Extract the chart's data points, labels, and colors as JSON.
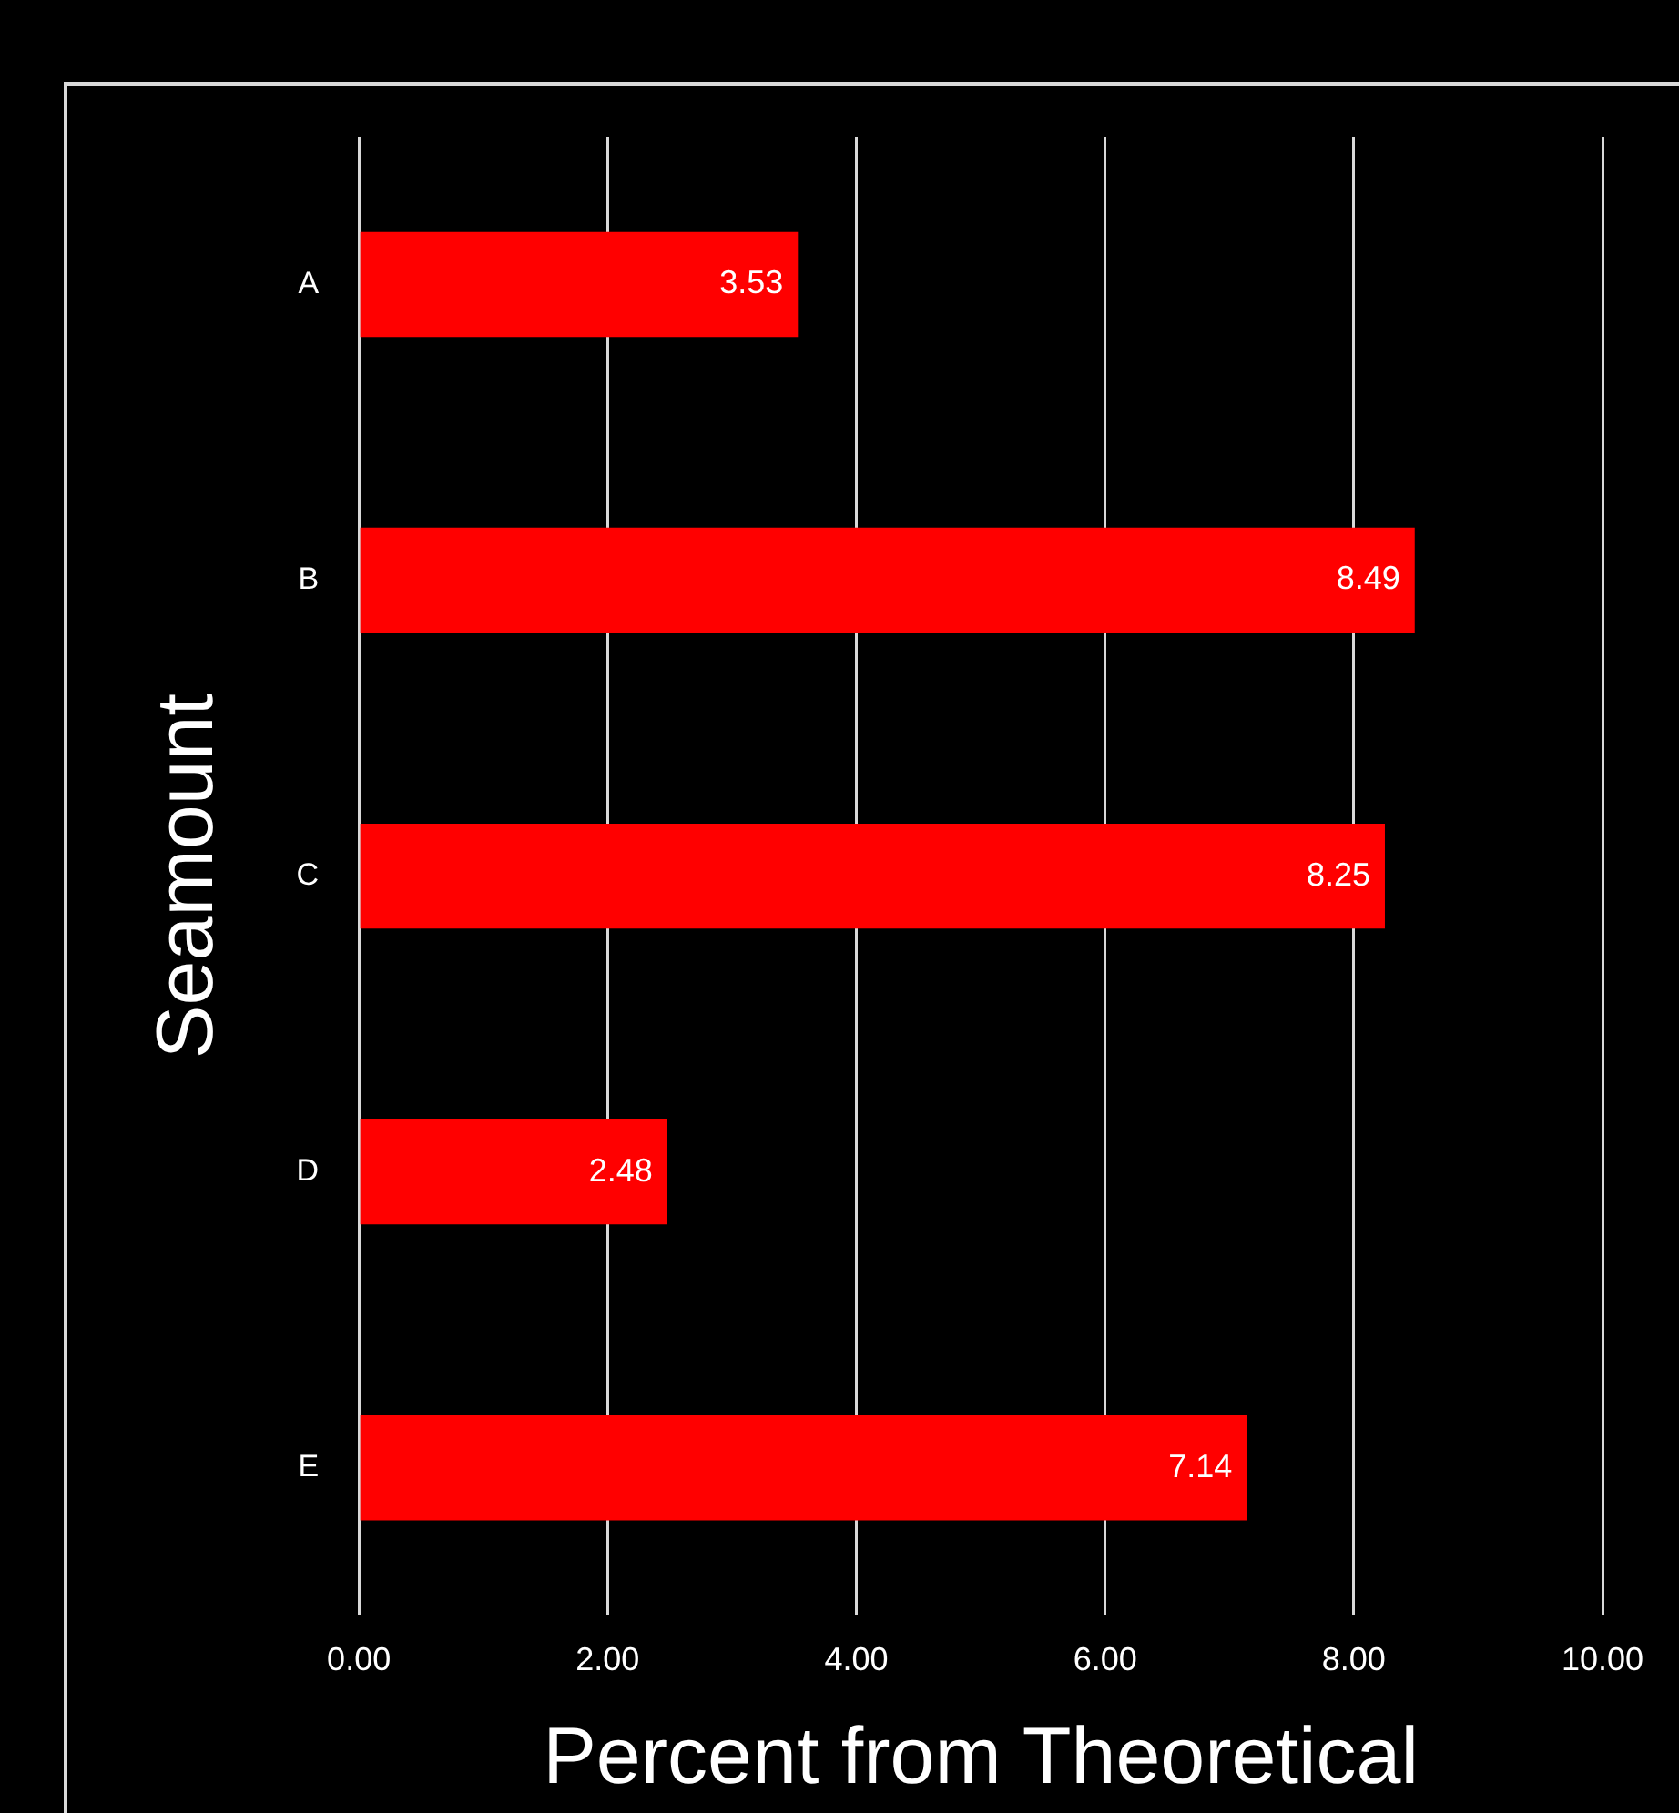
{
  "chart_data": {
    "type": "bar",
    "orientation": "horizontal",
    "xlabel": "Percent from Theoretical",
    "ylabel": "Seamount",
    "categories": [
      "A",
      "B",
      "C",
      "D",
      "E"
    ],
    "values": [
      3.53,
      8.49,
      8.25,
      2.48,
      7.14
    ],
    "color": "#ff0000",
    "xlim": [
      0,
      10
    ],
    "xticks": [
      {
        "value": 0,
        "label": "0.00"
      },
      {
        "value": 2,
        "label": "2.00"
      },
      {
        "value": 4,
        "label": "4.00"
      },
      {
        "value": 6,
        "label": "6.00"
      },
      {
        "value": 8,
        "label": "8.00"
      },
      {
        "value": 10,
        "label": "10.00"
      }
    ],
    "grid": "x",
    "legend": false,
    "data_labels": true
  }
}
